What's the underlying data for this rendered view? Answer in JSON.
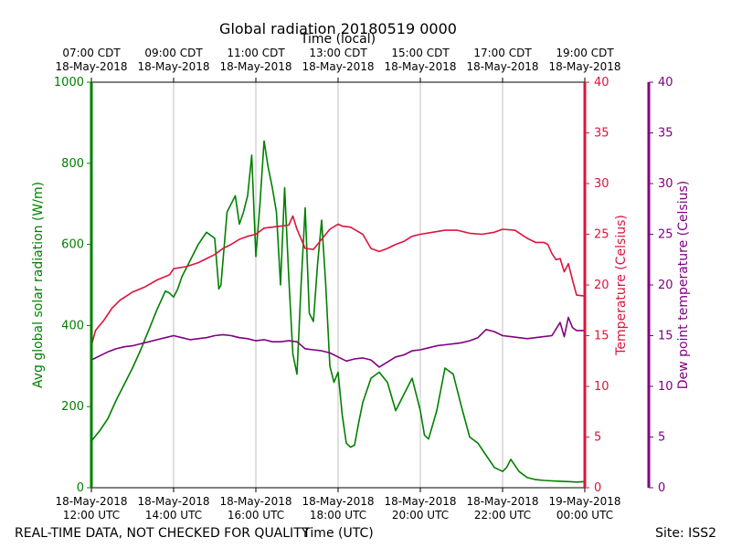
{
  "chart_data": {
    "type": "line",
    "title": "Global radiation 20180519 0000",
    "xlabel": "Time (UTC)",
    "x2label": "Time (local)",
    "ylabel": "Avg global solar radiation (W/m)",
    "y2label": "Temperature (Celsius)",
    "y3label": "Dew point temperature (Celsius)",
    "xlim_hours_utc": [
      12,
      24
    ],
    "ylim": [
      0,
      1000
    ],
    "y2lim": [
      0,
      40
    ],
    "y3lim": [
      0,
      40
    ],
    "yticks": [
      0,
      200,
      400,
      600,
      800,
      1000
    ],
    "y2ticks": [
      0,
      5,
      10,
      15,
      20,
      25,
      30,
      35,
      40
    ],
    "y3ticks": [
      0,
      5,
      10,
      15,
      20,
      25,
      30,
      35,
      40
    ],
    "xticks_bottom": [
      {
        "h": 12,
        "date": "18-May-2018",
        "time": "12:00 UTC"
      },
      {
        "h": 14,
        "date": "18-May-2018",
        "time": "14:00 UTC"
      },
      {
        "h": 16,
        "date": "18-May-2018",
        "time": "16:00 UTC"
      },
      {
        "h": 18,
        "date": "18-May-2018",
        "time": "18:00 UTC"
      },
      {
        "h": 20,
        "date": "18-May-2018",
        "time": "20:00 UTC"
      },
      {
        "h": 22,
        "date": "18-May-2018",
        "time": "22:00 UTC"
      },
      {
        "h": 24,
        "date": "19-May-2018",
        "time": "00:00 UTC"
      }
    ],
    "xticks_top": [
      {
        "h": 12,
        "time": "07:00 CDT",
        "date": "18-May-2018"
      },
      {
        "h": 14,
        "time": "09:00 CDT",
        "date": "18-May-2018"
      },
      {
        "h": 16,
        "time": "11:00 CDT",
        "date": "18-May-2018"
      },
      {
        "h": 18,
        "time": "13:00 CDT",
        "date": "18-May-2018"
      },
      {
        "h": 20,
        "time": "15:00 CDT",
        "date": "18-May-2018"
      },
      {
        "h": 22,
        "time": "17:00 CDT",
        "date": "18-May-2018"
      },
      {
        "h": 24,
        "time": "19:00 CDT",
        "date": "18-May-2018"
      }
    ],
    "grid": true,
    "colors": {
      "radiation": "#008000",
      "temperature": "#dc143c",
      "dewpoint": "#800080",
      "grid": "#b0b0b0",
      "axis": "#000000"
    },
    "series": [
      {
        "name": "Avg global solar radiation",
        "axis": "y",
        "color": "#008000",
        "x": [
          12.0,
          12.2,
          12.4,
          12.6,
          12.8,
          13.0,
          13.2,
          13.4,
          13.6,
          13.8,
          13.9,
          14.0,
          14.1,
          14.2,
          14.4,
          14.6,
          14.8,
          15.0,
          15.1,
          15.15,
          15.3,
          15.4,
          15.5,
          15.6,
          15.7,
          15.8,
          15.9,
          16.0,
          16.1,
          16.2,
          16.3,
          16.4,
          16.5,
          16.6,
          16.7,
          16.8,
          16.9,
          17.0,
          17.1,
          17.2,
          17.3,
          17.4,
          17.5,
          17.6,
          17.7,
          17.8,
          17.9,
          18.0,
          18.1,
          18.2,
          18.3,
          18.4,
          18.5,
          18.6,
          18.8,
          19.0,
          19.2,
          19.4,
          19.6,
          19.8,
          20.0,
          20.1,
          20.2,
          20.4,
          20.6,
          20.8,
          21.0,
          21.2,
          21.4,
          21.6,
          21.8,
          22.0,
          22.1,
          22.2,
          22.4,
          22.6,
          22.8,
          23.0,
          23.2,
          23.4,
          23.6,
          23.8,
          24.0
        ],
        "values": [
          115,
          140,
          170,
          215,
          255,
          295,
          340,
          390,
          440,
          485,
          480,
          470,
          490,
          520,
          560,
          600,
          630,
          615,
          490,
          500,
          680,
          700,
          720,
          650,
          680,
          720,
          820,
          570,
          700,
          855,
          790,
          740,
          680,
          500,
          740,
          520,
          330,
          280,
          500,
          690,
          430,
          410,
          550,
          660,
          500,
          300,
          260,
          285,
          180,
          110,
          100,
          105,
          160,
          210,
          270,
          285,
          260,
          190,
          230,
          270,
          190,
          130,
          120,
          190,
          295,
          280,
          200,
          125,
          110,
          80,
          50,
          40,
          50,
          70,
          40,
          25,
          20,
          18,
          17,
          16,
          15,
          14,
          15
        ]
      },
      {
        "name": "Temperature",
        "axis": "y2",
        "color": "#dc143c",
        "x": [
          12.0,
          12.1,
          12.3,
          12.5,
          12.7,
          13.0,
          13.3,
          13.6,
          13.9,
          14.0,
          14.3,
          14.6,
          14.8,
          15.0,
          15.2,
          15.4,
          15.6,
          15.8,
          16.0,
          16.2,
          16.4,
          16.6,
          16.8,
          16.9,
          17.0,
          17.2,
          17.4,
          17.6,
          17.8,
          18.0,
          18.1,
          18.3,
          18.6,
          18.8,
          19.0,
          19.2,
          19.4,
          19.6,
          19.8,
          20.0,
          20.3,
          20.6,
          20.9,
          21.2,
          21.5,
          21.8,
          22.0,
          22.3,
          22.6,
          22.8,
          23.0,
          23.1,
          23.2,
          23.3,
          23.4,
          23.5,
          23.6,
          23.7,
          23.8,
          24.0
        ],
        "values": [
          14.0,
          15.5,
          16.5,
          17.7,
          18.5,
          19.3,
          19.8,
          20.5,
          21.0,
          21.6,
          21.8,
          22.2,
          22.6,
          23.0,
          23.6,
          24.0,
          24.5,
          24.8,
          25.0,
          25.6,
          25.7,
          25.8,
          25.9,
          26.8,
          25.5,
          23.6,
          23.5,
          24.5,
          25.5,
          26.0,
          25.8,
          25.7,
          25.0,
          23.6,
          23.3,
          23.6,
          24.0,
          24.3,
          24.8,
          25.0,
          25.2,
          25.4,
          25.4,
          25.1,
          25.0,
          25.2,
          25.5,
          25.4,
          24.6,
          24.2,
          24.2,
          24.0,
          23.1,
          22.5,
          22.6,
          21.3,
          22.1,
          20.5,
          19.0,
          18.9
        ]
      },
      {
        "name": "Dew point temperature",
        "axis": "y3",
        "color": "#800080",
        "x": [
          12.0,
          12.2,
          12.4,
          12.6,
          12.8,
          13.0,
          13.2,
          13.4,
          13.6,
          13.8,
          14.0,
          14.2,
          14.4,
          14.6,
          14.8,
          15.0,
          15.2,
          15.4,
          15.6,
          15.8,
          16.0,
          16.2,
          16.4,
          16.6,
          16.8,
          17.0,
          17.2,
          17.4,
          17.6,
          17.8,
          18.0,
          18.2,
          18.4,
          18.6,
          18.8,
          19.0,
          19.2,
          19.4,
          19.6,
          19.8,
          20.0,
          20.2,
          20.4,
          20.6,
          20.8,
          21.0,
          21.2,
          21.4,
          21.6,
          21.8,
          22.0,
          22.2,
          22.4,
          22.6,
          22.8,
          23.0,
          23.2,
          23.4,
          23.5,
          23.6,
          23.7,
          23.8,
          24.0
        ],
        "values": [
          12.6,
          13.0,
          13.4,
          13.7,
          13.9,
          14.0,
          14.2,
          14.4,
          14.6,
          14.8,
          15.0,
          14.8,
          14.6,
          14.7,
          14.8,
          15.0,
          15.1,
          15.0,
          14.8,
          14.7,
          14.5,
          14.6,
          14.4,
          14.4,
          14.5,
          14.4,
          13.7,
          13.6,
          13.5,
          13.3,
          12.9,
          12.5,
          12.7,
          12.8,
          12.6,
          11.9,
          12.4,
          12.9,
          13.1,
          13.5,
          13.6,
          13.8,
          14.0,
          14.1,
          14.2,
          14.3,
          14.5,
          14.8,
          15.6,
          15.4,
          15.0,
          14.9,
          14.8,
          14.7,
          14.8,
          14.9,
          15.0,
          16.3,
          14.9,
          16.8,
          15.8,
          15.5,
          15.5
        ]
      }
    ]
  },
  "footer": {
    "disclaimer": "REAL-TIME DATA, NOT CHECKED FOR QUALITY",
    "site": "Site: ISS2"
  }
}
